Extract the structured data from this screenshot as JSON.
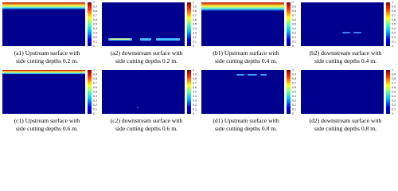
{
  "panels": [
    {
      "caption": [
        "(a1) Upstream surface with",
        "side cutting depths 0.2 m."
      ],
      "colorbar_ticks": [
        0,
        0.1,
        0.2,
        0.3,
        0.4,
        0.5,
        0.6,
        0.7,
        0.8,
        0.9,
        1
      ]
    },
    {
      "caption": [
        "(a2) downstream surface with",
        "side cutting depths 0.2 m."
      ],
      "colorbar_ticks": [
        0,
        0.1,
        0.2,
        0.3,
        0.4,
        0.5,
        0.6,
        0.7,
        0.8,
        0.9,
        1
      ]
    },
    {
      "caption": [
        "(b1) Upstream surface with",
        "side cutting depths 0.4 m."
      ],
      "colorbar_ticks": [
        0,
        0.1,
        0.2,
        0.3,
        0.4,
        0.5,
        0.6,
        0.7,
        0.8,
        0.9,
        1
      ]
    },
    {
      "caption": [
        "(b2) downstream surface with",
        "side cutting depths 0.4 m."
      ],
      "colorbar_ticks": [
        0,
        0.1,
        0.2,
        0.3,
        0.4,
        0.5,
        0.6,
        0.7,
        0.8,
        0.9,
        1
      ]
    },
    {
      "caption": [
        "(c1) Upstream surface with",
        "side cutting depths 0.6 m."
      ],
      "colorbar_ticks": [
        0,
        0.1,
        0.2,
        0.3,
        0.4,
        0.5,
        0.6,
        0.7,
        0.8,
        0.9,
        1
      ]
    },
    {
      "caption": [
        "(c2) downstream surface with",
        "side cutting depths 0.6 m."
      ],
      "colorbar_ticks": [
        0,
        0.1,
        0.2,
        0.3,
        0.4,
        0.5,
        0.6,
        0.7,
        0.8,
        0.9,
        1
      ]
    },
    {
      "caption": [
        "(d1) Upstream surface with",
        "side cutting depths 0.8 m."
      ],
      "colorbar_ticks": [
        0,
        0.1,
        0.2,
        0.3,
        0.4,
        0.5,
        0.6,
        0.7,
        0.8,
        0.9,
        1
      ]
    },
    {
      "caption": [
        "(d2) downstream surface with",
        "side cutting depths 0.8 m."
      ],
      "colorbar_ticks": [
        0,
        0.1,
        0.2,
        0.3,
        0.4,
        0.5,
        0.6,
        0.7,
        0.8,
        0.9,
        1
      ]
    }
  ]
}
